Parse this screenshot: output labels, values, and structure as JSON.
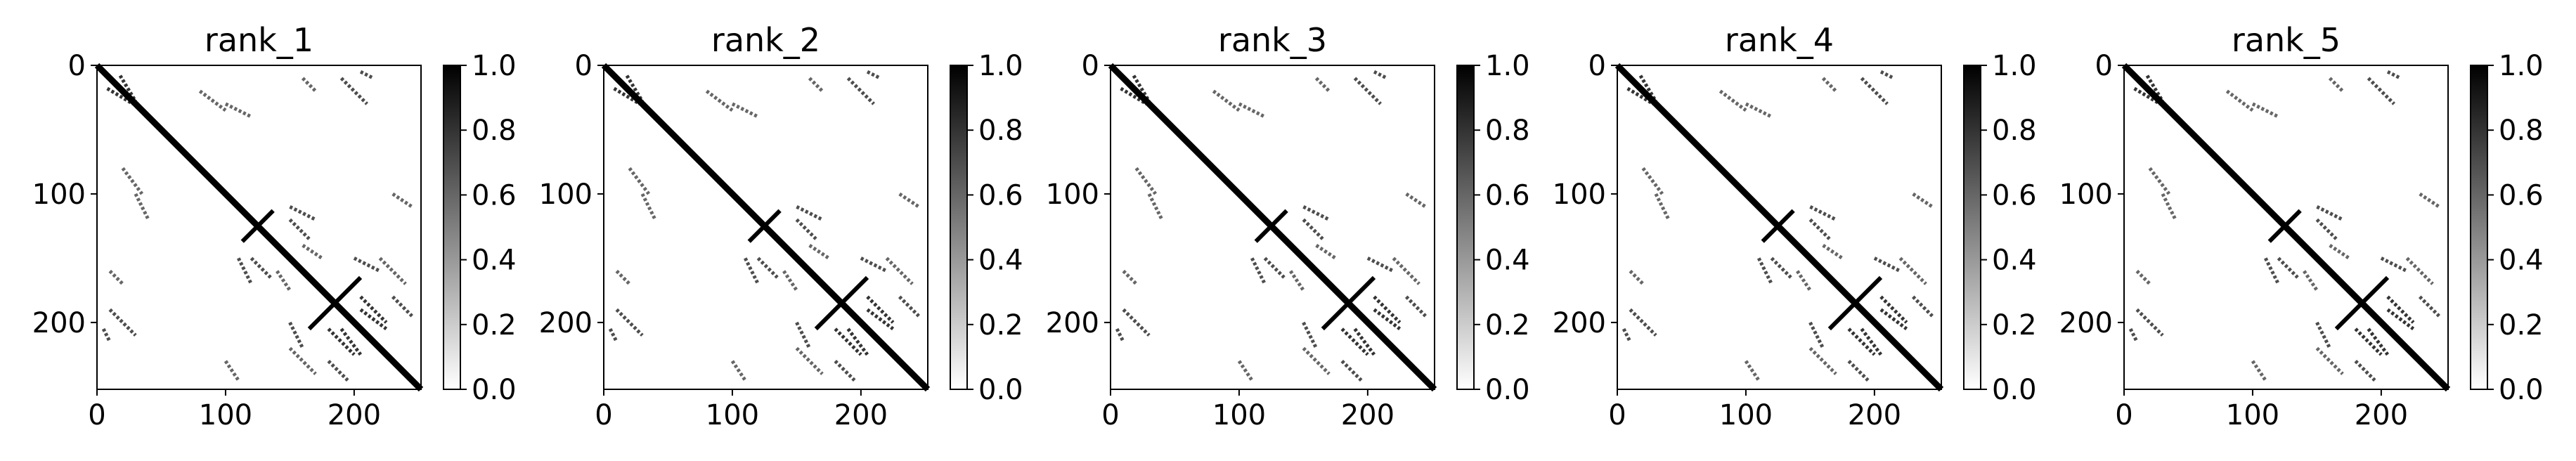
{
  "figure": {
    "background": "#ffffff",
    "colormap": "Greys",
    "color_low": "#ffffff",
    "color_high": "#000000"
  },
  "chart_data": [
    {
      "type": "heatmap",
      "title": "rank_1",
      "xlabel": "",
      "ylabel": "",
      "size": 252,
      "xlim": [
        0,
        252
      ],
      "ylim": [
        252,
        0
      ],
      "xticks": [
        0,
        100,
        200
      ],
      "yticks": [
        0,
        100,
        200
      ],
      "tick_labels": {
        "x": [
          "0",
          "100",
          "200"
        ],
        "y": [
          "0",
          "100",
          "200"
        ]
      },
      "colorbar": {
        "range": [
          0.0,
          1.0
        ],
        "ticks": [
          "0.0",
          "0.2",
          "0.4",
          "0.6",
          "0.8",
          "1.0"
        ]
      },
      "grid": false,
      "value_range": [
        0,
        1
      ],
      "diagonal": {
        "from": 0,
        "to": 252,
        "value": 1.0
      },
      "anti_diagonal_contacts": [
        {
          "center": [
            125,
            125
          ],
          "half_length": 12
        },
        {
          "center": [
            185,
            185
          ],
          "half_length": 20
        }
      ],
      "contact_bands": [
        {
          "from": [
            8,
            18
          ],
          "to": [
            28,
            30
          ],
          "value": 0.8
        },
        {
          "from": [
            80,
            20
          ],
          "to": [
            100,
            35
          ],
          "value": 0.6
        },
        {
          "from": [
            100,
            30
          ],
          "to": [
            120,
            40
          ],
          "value": 0.6
        },
        {
          "from": [
            150,
            110
          ],
          "to": [
            170,
            120
          ],
          "value": 0.7
        },
        {
          "from": [
            120,
            150
          ],
          "to": [
            135,
            165
          ],
          "value": 0.7
        },
        {
          "from": [
            160,
            140
          ],
          "to": [
            175,
            150
          ],
          "value": 0.6
        },
        {
          "from": [
            200,
            150
          ],
          "to": [
            220,
            160
          ],
          "value": 0.7
        },
        {
          "from": [
            205,
            190
          ],
          "to": [
            225,
            205
          ],
          "value": 0.8
        },
        {
          "from": [
            180,
            205
          ],
          "to": [
            200,
            225
          ],
          "value": 0.8
        },
        {
          "from": [
            230,
            180
          ],
          "to": [
            245,
            195
          ],
          "value": 0.7
        },
        {
          "from": [
            190,
            10
          ],
          "to": [
            210,
            30
          ],
          "value": 0.7
        },
        {
          "from": [
            150,
            220
          ],
          "to": [
            170,
            240
          ],
          "value": 0.6
        },
        {
          "from": [
            10,
            160
          ],
          "to": [
            20,
            170
          ],
          "value": 0.6
        },
        {
          "from": [
            5,
            205
          ],
          "to": [
            10,
            215
          ],
          "value": 0.7
        },
        {
          "from": [
            230,
            100
          ],
          "to": [
            245,
            110
          ],
          "value": 0.6
        }
      ]
    },
    {
      "type": "heatmap",
      "title": "rank_2",
      "xlabel": "",
      "ylabel": "",
      "size": 252,
      "xlim": [
        0,
        252
      ],
      "ylim": [
        252,
        0
      ],
      "xticks": [
        0,
        100,
        200
      ],
      "yticks": [
        0,
        100,
        200
      ],
      "tick_labels": {
        "x": [
          "0",
          "100",
          "200"
        ],
        "y": [
          "0",
          "100",
          "200"
        ]
      },
      "colorbar": {
        "range": [
          0.0,
          1.0
        ],
        "ticks": [
          "0.0",
          "0.2",
          "0.4",
          "0.6",
          "0.8",
          "1.0"
        ]
      },
      "grid": false,
      "value_range": [
        0,
        1
      ],
      "diagonal": {
        "from": 0,
        "to": 252,
        "value": 1.0
      },
      "anti_diagonal_contacts": [
        {
          "center": [
            125,
            125
          ],
          "half_length": 12
        },
        {
          "center": [
            185,
            185
          ],
          "half_length": 20
        }
      ],
      "contact_bands": [
        {
          "from": [
            8,
            18
          ],
          "to": [
            28,
            30
          ],
          "value": 0.8
        },
        {
          "from": [
            80,
            20
          ],
          "to": [
            100,
            35
          ],
          "value": 0.6
        },
        {
          "from": [
            100,
            30
          ],
          "to": [
            120,
            40
          ],
          "value": 0.6
        },
        {
          "from": [
            150,
            110
          ],
          "to": [
            170,
            120
          ],
          "value": 0.7
        },
        {
          "from": [
            120,
            150
          ],
          "to": [
            135,
            165
          ],
          "value": 0.7
        },
        {
          "from": [
            160,
            140
          ],
          "to": [
            175,
            150
          ],
          "value": 0.6
        },
        {
          "from": [
            200,
            150
          ],
          "to": [
            220,
            160
          ],
          "value": 0.7
        },
        {
          "from": [
            205,
            190
          ],
          "to": [
            225,
            205
          ],
          "value": 0.8
        },
        {
          "from": [
            180,
            205
          ],
          "to": [
            200,
            225
          ],
          "value": 0.8
        },
        {
          "from": [
            230,
            180
          ],
          "to": [
            245,
            195
          ],
          "value": 0.7
        },
        {
          "from": [
            190,
            10
          ],
          "to": [
            210,
            30
          ],
          "value": 0.7
        },
        {
          "from": [
            150,
            220
          ],
          "to": [
            170,
            240
          ],
          "value": 0.6
        },
        {
          "from": [
            10,
            160
          ],
          "to": [
            20,
            170
          ],
          "value": 0.6
        },
        {
          "from": [
            5,
            205
          ],
          "to": [
            10,
            215
          ],
          "value": 0.7
        },
        {
          "from": [
            230,
            100
          ],
          "to": [
            245,
            110
          ],
          "value": 0.6
        }
      ]
    },
    {
      "type": "heatmap",
      "title": "rank_3",
      "xlabel": "",
      "ylabel": "",
      "size": 252,
      "xlim": [
        0,
        252
      ],
      "ylim": [
        252,
        0
      ],
      "xticks": [
        0,
        100,
        200
      ],
      "yticks": [
        0,
        100,
        200
      ],
      "tick_labels": {
        "x": [
          "0",
          "100",
          "200"
        ],
        "y": [
          "0",
          "100",
          "200"
        ]
      },
      "colorbar": {
        "range": [
          0.0,
          1.0
        ],
        "ticks": [
          "0.0",
          "0.2",
          "0.4",
          "0.6",
          "0.8",
          "1.0"
        ]
      },
      "grid": false,
      "value_range": [
        0,
        1
      ],
      "diagonal": {
        "from": 0,
        "to": 252,
        "value": 1.0
      },
      "anti_diagonal_contacts": [
        {
          "center": [
            125,
            125
          ],
          "half_length": 12
        },
        {
          "center": [
            185,
            185
          ],
          "half_length": 20
        }
      ],
      "contact_bands": [
        {
          "from": [
            8,
            18
          ],
          "to": [
            28,
            30
          ],
          "value": 0.8
        },
        {
          "from": [
            80,
            20
          ],
          "to": [
            100,
            35
          ],
          "value": 0.6
        },
        {
          "from": [
            100,
            30
          ],
          "to": [
            120,
            40
          ],
          "value": 0.6
        },
        {
          "from": [
            150,
            110
          ],
          "to": [
            170,
            120
          ],
          "value": 0.7
        },
        {
          "from": [
            120,
            150
          ],
          "to": [
            135,
            165
          ],
          "value": 0.7
        },
        {
          "from": [
            160,
            140
          ],
          "to": [
            175,
            150
          ],
          "value": 0.6
        },
        {
          "from": [
            200,
            150
          ],
          "to": [
            220,
            160
          ],
          "value": 0.7
        },
        {
          "from": [
            205,
            190
          ],
          "to": [
            225,
            205
          ],
          "value": 0.8
        },
        {
          "from": [
            180,
            205
          ],
          "to": [
            200,
            225
          ],
          "value": 0.8
        },
        {
          "from": [
            230,
            180
          ],
          "to": [
            245,
            195
          ],
          "value": 0.7
        },
        {
          "from": [
            190,
            10
          ],
          "to": [
            210,
            30
          ],
          "value": 0.7
        },
        {
          "from": [
            150,
            220
          ],
          "to": [
            170,
            240
          ],
          "value": 0.6
        },
        {
          "from": [
            10,
            160
          ],
          "to": [
            20,
            170
          ],
          "value": 0.6
        },
        {
          "from": [
            5,
            205
          ],
          "to": [
            10,
            215
          ],
          "value": 0.7
        },
        {
          "from": [
            230,
            100
          ],
          "to": [
            245,
            110
          ],
          "value": 0.6
        }
      ]
    },
    {
      "type": "heatmap",
      "title": "rank_4",
      "xlabel": "",
      "ylabel": "",
      "size": 252,
      "xlim": [
        0,
        252
      ],
      "ylim": [
        252,
        0
      ],
      "xticks": [
        0,
        100,
        200
      ],
      "yticks": [
        0,
        100,
        200
      ],
      "tick_labels": {
        "x": [
          "0",
          "100",
          "200"
        ],
        "y": [
          "0",
          "100",
          "200"
        ]
      },
      "colorbar": {
        "range": [
          0.0,
          1.0
        ],
        "ticks": [
          "0.0",
          "0.2",
          "0.4",
          "0.6",
          "0.8",
          "1.0"
        ]
      },
      "grid": false,
      "value_range": [
        0,
        1
      ],
      "diagonal": {
        "from": 0,
        "to": 252,
        "value": 1.0
      },
      "anti_diagonal_contacts": [
        {
          "center": [
            125,
            125
          ],
          "half_length": 12
        },
        {
          "center": [
            185,
            185
          ],
          "half_length": 20
        }
      ],
      "contact_bands": [
        {
          "from": [
            8,
            18
          ],
          "to": [
            28,
            30
          ],
          "value": 0.8
        },
        {
          "from": [
            80,
            20
          ],
          "to": [
            100,
            35
          ],
          "value": 0.6
        },
        {
          "from": [
            100,
            30
          ],
          "to": [
            120,
            40
          ],
          "value": 0.6
        },
        {
          "from": [
            150,
            110
          ],
          "to": [
            170,
            120
          ],
          "value": 0.7
        },
        {
          "from": [
            120,
            150
          ],
          "to": [
            135,
            165
          ],
          "value": 0.7
        },
        {
          "from": [
            160,
            140
          ],
          "to": [
            175,
            150
          ],
          "value": 0.6
        },
        {
          "from": [
            200,
            150
          ],
          "to": [
            220,
            160
          ],
          "value": 0.7
        },
        {
          "from": [
            205,
            190
          ],
          "to": [
            225,
            205
          ],
          "value": 0.8
        },
        {
          "from": [
            180,
            205
          ],
          "to": [
            200,
            225
          ],
          "value": 0.8
        },
        {
          "from": [
            230,
            180
          ],
          "to": [
            245,
            195
          ],
          "value": 0.7
        },
        {
          "from": [
            190,
            10
          ],
          "to": [
            210,
            30
          ],
          "value": 0.7
        },
        {
          "from": [
            150,
            220
          ],
          "to": [
            170,
            240
          ],
          "value": 0.6
        },
        {
          "from": [
            10,
            160
          ],
          "to": [
            20,
            170
          ],
          "value": 0.6
        },
        {
          "from": [
            5,
            205
          ],
          "to": [
            10,
            215
          ],
          "value": 0.7
        },
        {
          "from": [
            230,
            100
          ],
          "to": [
            245,
            110
          ],
          "value": 0.6
        }
      ]
    },
    {
      "type": "heatmap",
      "title": "rank_5",
      "xlabel": "",
      "ylabel": "",
      "size": 252,
      "xlim": [
        0,
        252
      ],
      "ylim": [
        252,
        0
      ],
      "xticks": [
        0,
        100,
        200
      ],
      "yticks": [
        0,
        100,
        200
      ],
      "tick_labels": {
        "x": [
          "0",
          "100",
          "200"
        ],
        "y": [
          "0",
          "100",
          "200"
        ]
      },
      "colorbar": {
        "range": [
          0.0,
          1.0
        ],
        "ticks": [
          "0.0",
          "0.2",
          "0.4",
          "0.6",
          "0.8",
          "1.0"
        ]
      },
      "grid": false,
      "value_range": [
        0,
        1
      ],
      "diagonal": {
        "from": 0,
        "to": 252,
        "value": 1.0
      },
      "anti_diagonal_contacts": [
        {
          "center": [
            125,
            125
          ],
          "half_length": 12
        },
        {
          "center": [
            185,
            185
          ],
          "half_length": 20
        }
      ],
      "contact_bands": [
        {
          "from": [
            8,
            18
          ],
          "to": [
            28,
            30
          ],
          "value": 0.8
        },
        {
          "from": [
            80,
            20
          ],
          "to": [
            100,
            35
          ],
          "value": 0.6
        },
        {
          "from": [
            100,
            30
          ],
          "to": [
            120,
            40
          ],
          "value": 0.6
        },
        {
          "from": [
            150,
            110
          ],
          "to": [
            170,
            120
          ],
          "value": 0.7
        },
        {
          "from": [
            120,
            150
          ],
          "to": [
            135,
            165
          ],
          "value": 0.7
        },
        {
          "from": [
            160,
            140
          ],
          "to": [
            175,
            150
          ],
          "value": 0.6
        },
        {
          "from": [
            200,
            150
          ],
          "to": [
            220,
            160
          ],
          "value": 0.7
        },
        {
          "from": [
            205,
            190
          ],
          "to": [
            225,
            205
          ],
          "value": 0.8
        },
        {
          "from": [
            180,
            205
          ],
          "to": [
            200,
            225
          ],
          "value": 0.8
        },
        {
          "from": [
            230,
            180
          ],
          "to": [
            245,
            195
          ],
          "value": 0.7
        },
        {
          "from": [
            190,
            10
          ],
          "to": [
            210,
            30
          ],
          "value": 0.7
        },
        {
          "from": [
            150,
            220
          ],
          "to": [
            170,
            240
          ],
          "value": 0.6
        },
        {
          "from": [
            10,
            160
          ],
          "to": [
            20,
            170
          ],
          "value": 0.6
        },
        {
          "from": [
            5,
            205
          ],
          "to": [
            10,
            215
          ],
          "value": 0.7
        },
        {
          "from": [
            230,
            100
          ],
          "to": [
            245,
            110
          ],
          "value": 0.6
        }
      ]
    }
  ]
}
